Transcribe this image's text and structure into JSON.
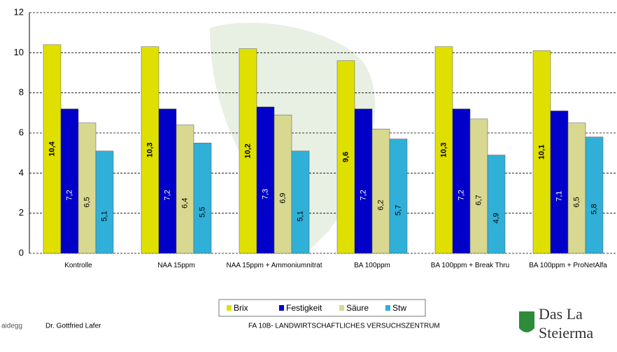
{
  "chart_data": {
    "type": "bar",
    "categories": [
      "Kontrolle",
      "NAA 15ppm",
      "NAA 15ppm + Ammoniumnitrat",
      "BA 100ppm",
      "BA 100ppm + Break Thru",
      "BA 100ppm + ProNetAlfa"
    ],
    "series": [
      {
        "name": "Brix",
        "color": "#e0e000",
        "values": [
          10.4,
          10.3,
          10.2,
          9.6,
          10.3,
          10.1
        ],
        "value_labels": [
          "10,4",
          "10,3",
          "10,2",
          "9,6",
          "10,3",
          "10,1"
        ]
      },
      {
        "name": "Festigkeit",
        "color": "#0000c8",
        "values": [
          7.2,
          7.2,
          7.3,
          7.2,
          7.2,
          7.1
        ],
        "value_labels": [
          "7,2",
          "7,2",
          "7,3",
          "7,2",
          "7,2",
          "7,1"
        ]
      },
      {
        "name": "Säure",
        "color": "#d8d890",
        "values": [
          6.5,
          6.4,
          6.9,
          6.2,
          6.7,
          6.5
        ],
        "value_labels": [
          "6,5",
          "6,4",
          "6,9",
          "6,2",
          "6,7",
          "6,5"
        ]
      },
      {
        "name": "Stw",
        "color": "#30b0d8",
        "values": [
          5.1,
          5.5,
          5.1,
          5.7,
          4.9,
          5.8
        ],
        "value_labels": [
          "5,1",
          "5,5",
          "5,1",
          "5,7",
          "4,9",
          "5,8"
        ]
      }
    ],
    "ylim": [
      0,
      12
    ],
    "yticks": [
      0,
      2,
      4,
      6,
      8,
      10,
      12
    ],
    "grid": true,
    "legend": "bottom"
  },
  "footer": {
    "left_logo": "aidegg",
    "author": "Dr. Gottfried Lafer",
    "institute": "FA 10B- LANDWIRTSCHAFTLICHES VERSUCHSZENTRUM",
    "logo_line1": "Das La",
    "logo_line2": "Steierma"
  }
}
